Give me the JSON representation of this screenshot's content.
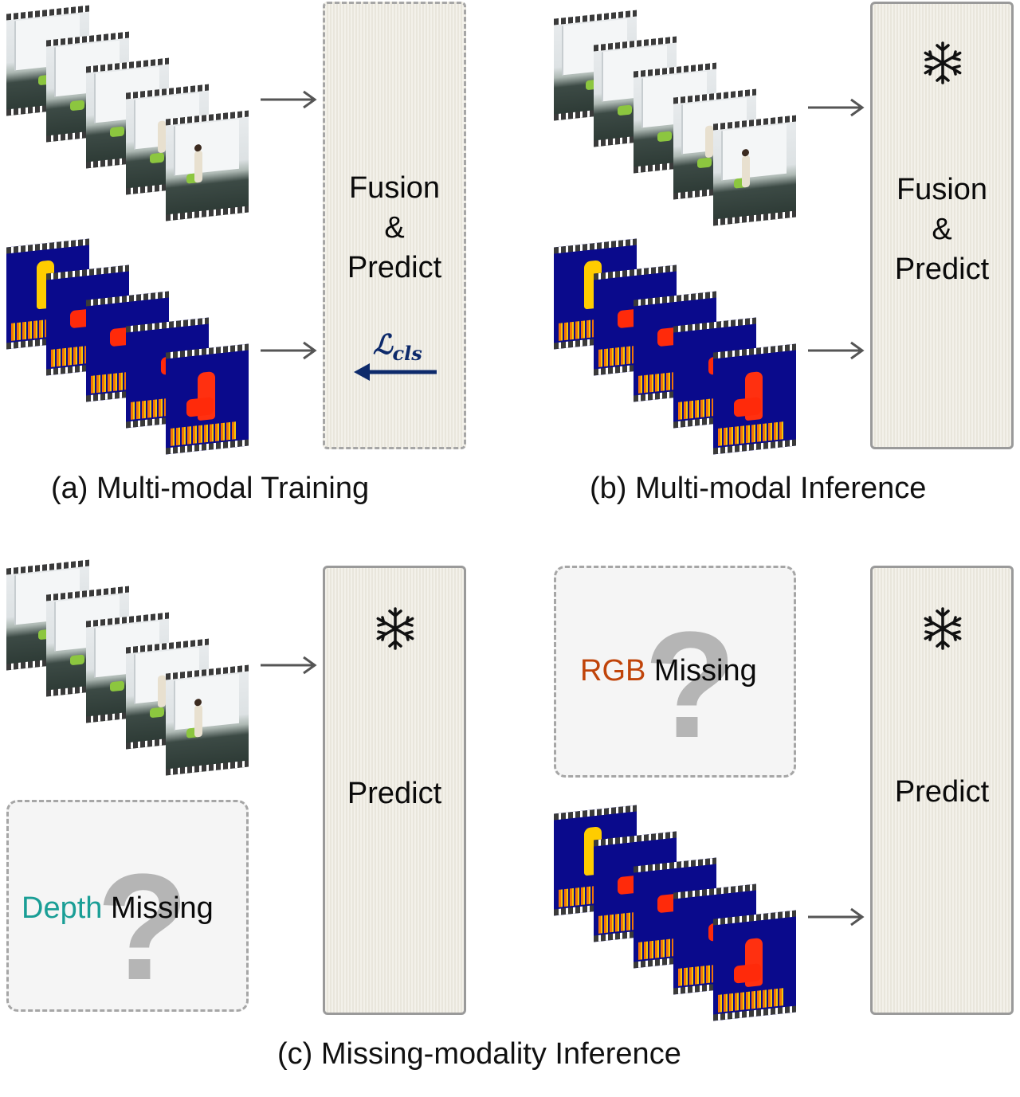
{
  "panels": {
    "fusion_predict_label": [
      "Fusion",
      "&",
      "Predict"
    ],
    "predict_label": "Predict",
    "loss_label_main": "ℒ",
    "loss_label_sub": "cls"
  },
  "captions": {
    "a": "(a) Multi-modal Training",
    "b": "(b) Multi-modal Inference",
    "c": "(c) Missing-modality Inference"
  },
  "missing": {
    "rgb_prefix": "RGB",
    "depth_prefix": "Depth",
    "suffix": "Missing",
    "rgb_color": "#c0440a",
    "depth_color": "#1a9e96",
    "question_mark": "?"
  },
  "icons": {
    "frozen": "snowflake-icon",
    "arrow": "right-arrow-icon",
    "loss_arrow": "left-arrow-icon"
  },
  "colors": {
    "arrow": "#555555",
    "loss_arrow": "#0d2a6b",
    "depth_bg": "#0a0a8c"
  }
}
